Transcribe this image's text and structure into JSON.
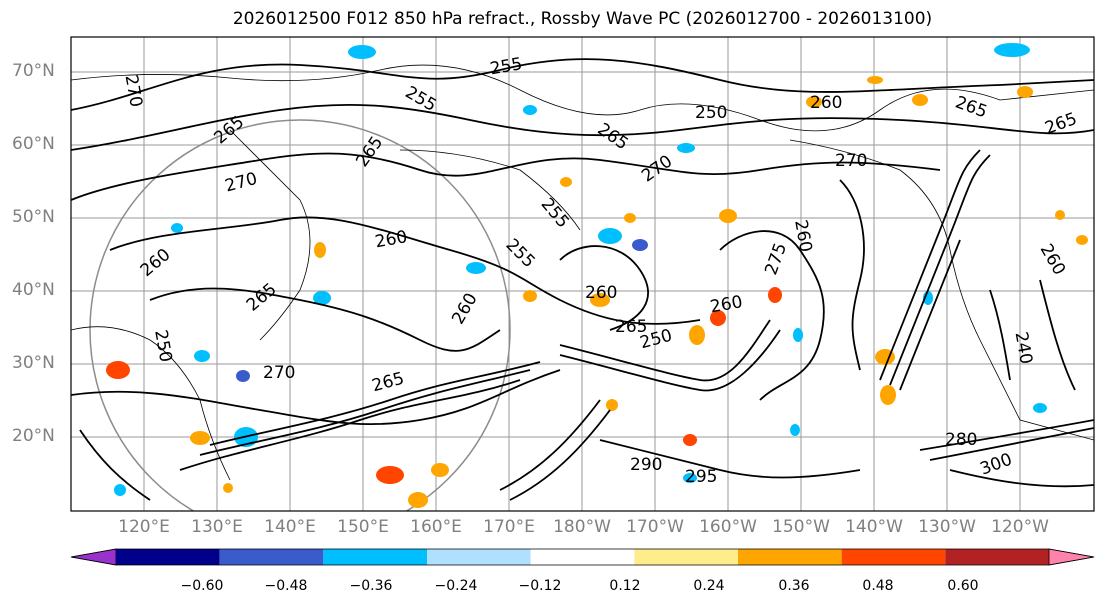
{
  "title": "2026012500 F012 850 hPa refract., Rossby Wave PC (2026012700 - 2026013100)",
  "map": {
    "lat_ticks": [
      "70°N",
      "60°N",
      "50°N",
      "40°N",
      "30°N",
      "20°N"
    ],
    "lon_ticks": [
      "120°E",
      "130°E",
      "140°E",
      "150°E",
      "160°E",
      "170°E",
      "180°W",
      "170°W",
      "160°W",
      "150°W",
      "140°W",
      "130°W",
      "120°W"
    ],
    "contour_labels": [
      "270",
      "255",
      "255",
      "265",
      "265",
      "260",
      "250",
      "265",
      "265",
      "270",
      "270",
      "260",
      "265",
      "260",
      "255",
      "260",
      "265",
      "260",
      "270",
      "260",
      "265",
      "275",
      "270",
      "255",
      "260",
      "265",
      "250",
      "260",
      "280",
      "290",
      "295",
      "300",
      "250",
      "240"
    ]
  },
  "colorbar": {
    "ticks": [
      "−0.60",
      "−0.48",
      "−0.36",
      "−0.24",
      "−0.12",
      "0.12",
      "0.24",
      "0.36",
      "0.48",
      "0.60"
    ],
    "colors": [
      "#9932cc",
      "#00008b",
      "#3a5bcc",
      "#00bfff",
      "#b0e0ff",
      "#ffffff",
      "#ffec8b",
      "#ffa500",
      "#ff4500",
      "#b22222",
      "#ff82ab"
    ]
  }
}
